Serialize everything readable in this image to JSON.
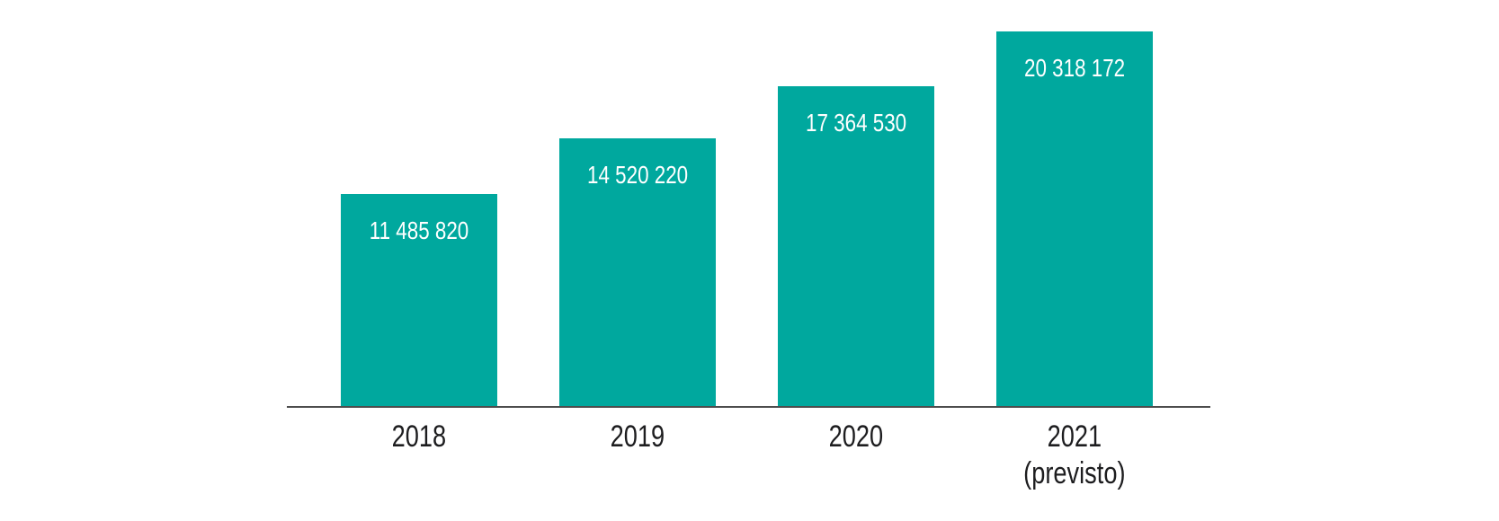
{
  "chart_data": {
    "type": "bar",
    "title": "",
    "xlabel": "",
    "ylabel": "",
    "categories": [
      "2018",
      "2019",
      "2020",
      "2021"
    ],
    "category_sublabels": [
      "",
      "",
      "",
      "(previsto)"
    ],
    "values": [
      11485820,
      14520220,
      17364530,
      20318172
    ],
    "value_labels": [
      "11 485 820",
      "14 520 220",
      "17 364 530",
      "20 318 172"
    ],
    "value_label_position": "inside-top",
    "ylim": [
      0,
      20318172
    ],
    "grid": false,
    "legend": false,
    "axis": "x-only",
    "colors": {
      "bar": "#00a89e",
      "value_label": "#ffffff",
      "tick_label": "#1d1d1f",
      "axis_line": "#4d4d4d",
      "background": "#ffffff"
    }
  }
}
